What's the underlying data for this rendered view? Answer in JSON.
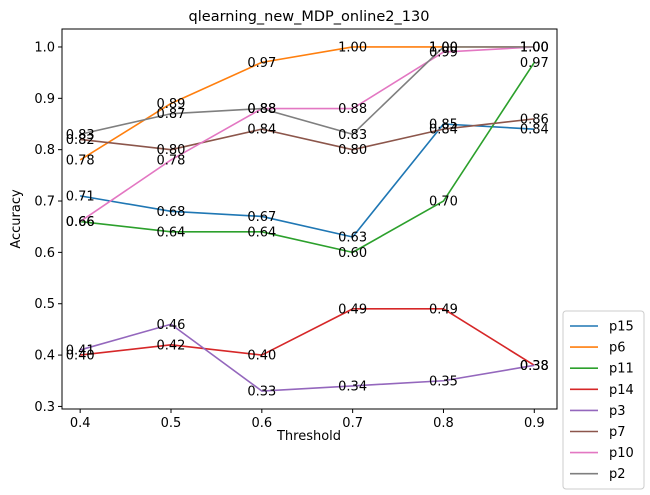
{
  "chart_data": {
    "type": "line",
    "title": "qlearning_new_MDP_online2_130",
    "xlabel": "Threshold",
    "ylabel": "Accuracy",
    "x": [
      0.4,
      0.5,
      0.6,
      0.7,
      0.8,
      0.9
    ],
    "x_ticks": [
      "0.4",
      "0.5",
      "0.6",
      "0.7",
      "0.8",
      "0.9"
    ],
    "y_ticks": [
      "0.3",
      "0.4",
      "0.5",
      "0.6",
      "0.7",
      "0.8",
      "0.9",
      "1.0"
    ],
    "xlim": [
      0.38,
      0.925
    ],
    "ylim": [
      0.295,
      1.035
    ],
    "grid": false,
    "legend_position": "outside-bottom-right",
    "series": [
      {
        "name": "p15",
        "color": "#1f77b4",
        "values": [
          0.71,
          0.68,
          0.67,
          0.63,
          0.85,
          0.84
        ],
        "labels": [
          "0.71",
          "0.68",
          "0.67",
          "0.63",
          "0.85",
          "0.84"
        ]
      },
      {
        "name": "p6",
        "color": "#ff7f0e",
        "values": [
          0.78,
          0.89,
          0.97,
          1.0,
          1.0,
          1.0
        ],
        "labels": [
          "0.78",
          "0.89",
          "0.97",
          "1.00",
          "1.00",
          "1.00"
        ]
      },
      {
        "name": "p11",
        "color": "#2ca02c",
        "values": [
          0.66,
          0.64,
          0.64,
          0.6,
          0.7,
          0.97
        ],
        "labels": [
          "0.66",
          "0.64",
          "0.64",
          "0.60",
          "0.70",
          "0.97"
        ]
      },
      {
        "name": "p14",
        "color": "#d62728",
        "values": [
          0.4,
          0.42,
          0.4,
          0.49,
          0.49,
          0.38
        ],
        "labels": [
          "0.40",
          "0.42",
          "0.40",
          "0.49",
          "0.49",
          "0.38"
        ]
      },
      {
        "name": "p3",
        "color": "#9467bd",
        "values": [
          0.41,
          0.46,
          0.33,
          0.34,
          0.35,
          0.38
        ],
        "labels": [
          "0.41",
          "0.46",
          "0.33",
          "0.34",
          "0.35",
          "0.38"
        ]
      },
      {
        "name": "p7",
        "color": "#8c564b",
        "values": [
          0.82,
          0.8,
          0.84,
          0.8,
          0.84,
          0.86
        ],
        "labels": [
          "0.82",
          "0.80",
          "0.84",
          "0.80",
          "0.84",
          "0.86"
        ]
      },
      {
        "name": "p10",
        "color": "#e377c2",
        "values": [
          0.66,
          0.78,
          0.88,
          0.88,
          0.99,
          1.0
        ],
        "labels": [
          "0.66",
          "0.78",
          "0.88",
          "0.88",
          "0.99",
          "1.00"
        ]
      },
      {
        "name": "p2",
        "color": "#7f7f7f",
        "values": [
          0.83,
          0.87,
          0.88,
          0.83,
          1.0,
          1.0
        ],
        "labels": [
          "0.83",
          "0.87",
          "0.88",
          "0.83",
          "1.00",
          "1.00"
        ]
      }
    ]
  }
}
